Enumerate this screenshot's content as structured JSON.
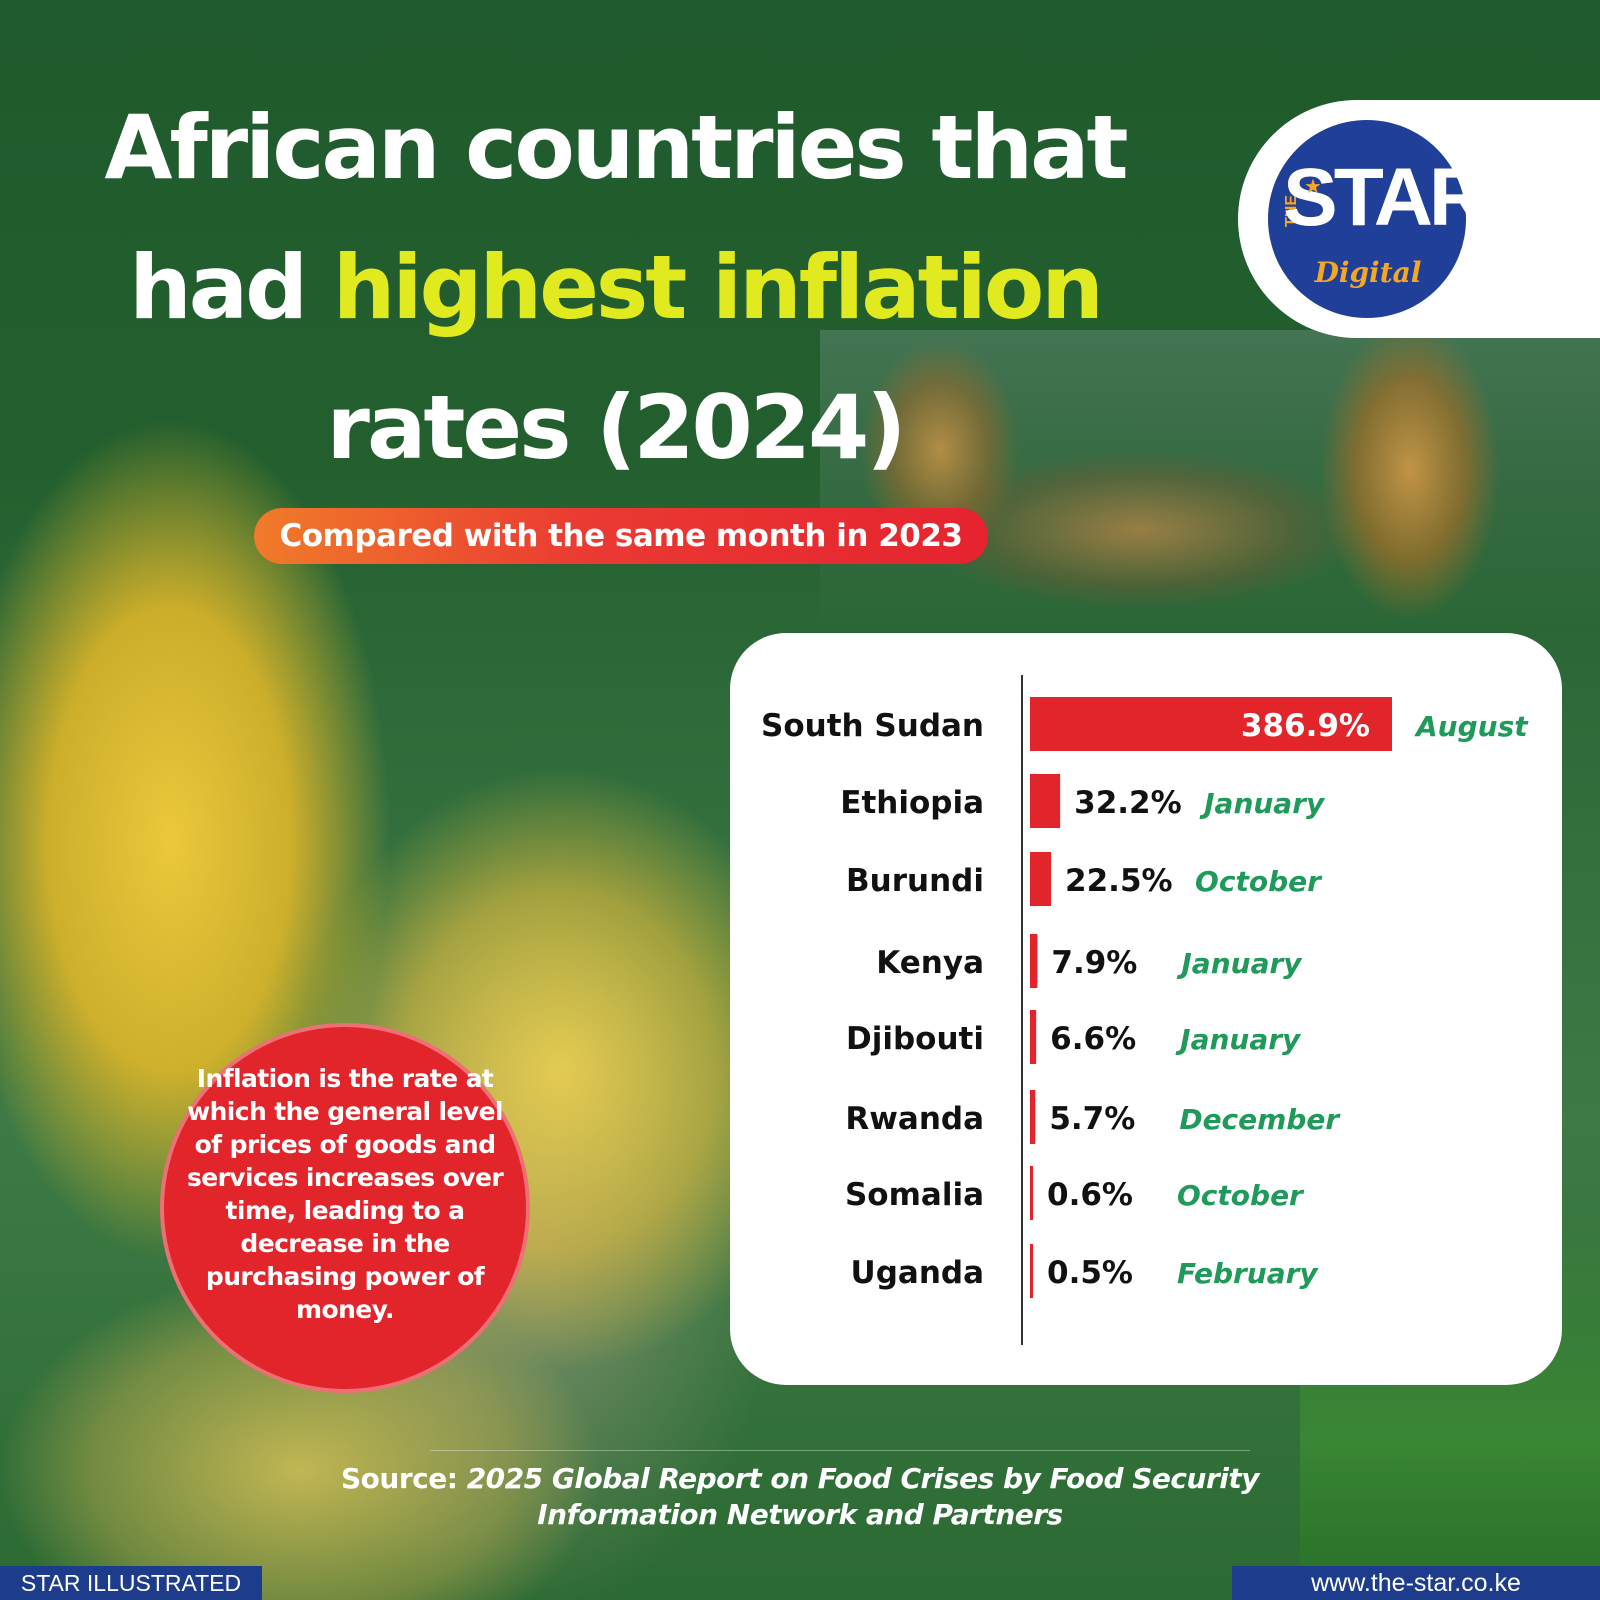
{
  "title": {
    "part1": "African countries that had ",
    "highlight": "highest inflation",
    "part2": " rates (2024)"
  },
  "subtitle": "Compared with the same month in 2023",
  "logo": {
    "the": "THE",
    "star": "STAR",
    "digital": "Digital"
  },
  "info_text": "Inflation is the rate at which the general level of prices of goods and services increases over time, leading to a decrease in the purchasing power of money.",
  "source": {
    "label": "Source:",
    "text": "2025 Global Report on Food Crises by Food Security Information Network and Partners"
  },
  "footer": {
    "left": "STAR ILLUSTRATED",
    "right": "www.the-star.co.ke"
  },
  "colors": {
    "bar": "#e2242b",
    "month": "#1f9a5a",
    "highlight": "#e1ea1e",
    "brand_blue": "#1f3f99"
  },
  "chart_data": {
    "type": "bar",
    "orientation": "horizontal",
    "categories": [
      "South Sudan",
      "Ethiopia",
      "Burundi",
      "Kenya",
      "Djibouti",
      "Rwanda",
      "Somalia",
      "Uganda"
    ],
    "values": [
      386.9,
      32.2,
      22.5,
      7.9,
      6.6,
      5.7,
      0.6,
      0.5
    ],
    "value_labels": [
      "386.9%",
      "32.2%",
      "22.5%",
      "7.9%",
      "6.6%",
      "5.7%",
      "0.6%",
      "0.5%"
    ],
    "months": [
      "August",
      "January",
      "October",
      "January",
      "January",
      "December",
      "October",
      "February"
    ],
    "xlim": [
      0,
      386.9
    ],
    "grid": false,
    "legend": "none"
  }
}
